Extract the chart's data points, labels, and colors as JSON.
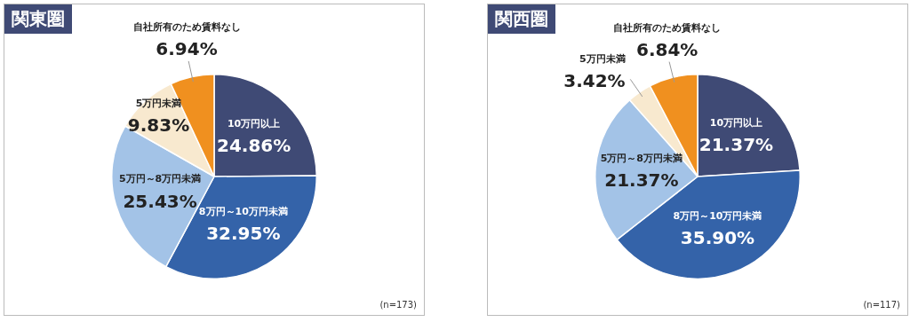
{
  "chart_data": [
    {
      "type": "pie",
      "title": "関東圏",
      "categories": [
        "10万円以上",
        "8万円～10万円未満",
        "5万円～8万円未満",
        "5万円未満",
        "自社所有のため賃料なし"
      ],
      "values": [
        24.86,
        32.95,
        25.43,
        9.83,
        6.94
      ],
      "colors": [
        "#3f4a75",
        "#3463a9",
        "#a3c3e7",
        "#f8e9cf",
        "#f0901f"
      ],
      "value_labels": [
        "24.86%",
        "32.95%",
        "25.43%",
        "9.83%",
        "6.94%"
      ],
      "annotations": [
        "(n=173)"
      ]
    },
    {
      "type": "pie",
      "title": "関西圏",
      "categories": [
        "10万円以上",
        "8万円～10万円未満",
        "5万円～8万円未満",
        "5万円未満",
        "自社所有のため賃料なし"
      ],
      "values": [
        21.37,
        35.9,
        21.37,
        3.42,
        6.84
      ],
      "colors": [
        "#3f4a75",
        "#3463a9",
        "#a3c3e7",
        "#f8e9cf",
        "#f0901f"
      ],
      "value_labels": [
        "21.37%",
        "35.90%",
        "21.37%",
        "3.42%",
        "6.84%"
      ],
      "annotations": [
        "(n=117)"
      ]
    }
  ]
}
